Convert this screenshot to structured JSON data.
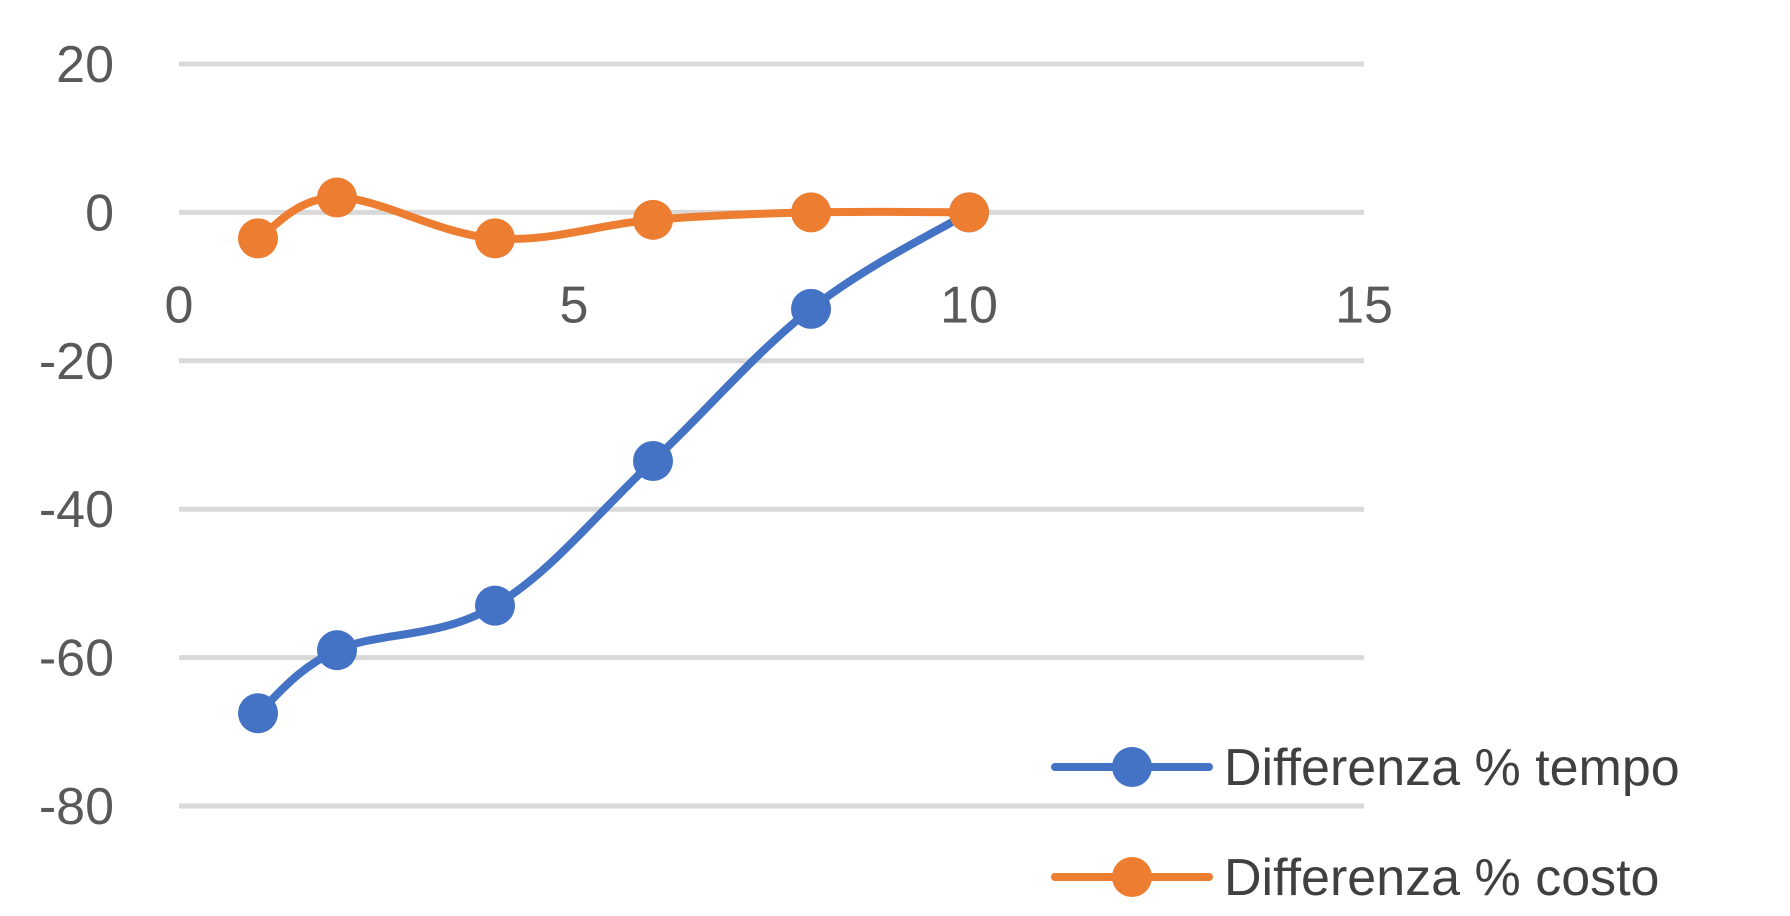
{
  "chart_data": {
    "type": "line",
    "title": "",
    "xlabel": "",
    "ylabel": "",
    "xlim": [
      0,
      15
    ],
    "ylim": [
      -80,
      20
    ],
    "x_ticks": [
      "0",
      "5",
      "10",
      "15"
    ],
    "y_ticks": [
      "20",
      "0",
      "-20",
      "-40",
      "-60",
      "-80"
    ],
    "grid": true,
    "legend_position": "bottom-right",
    "series": [
      {
        "name": "Differenza % tempo",
        "color": "#4472C4",
        "points": [
          {
            "x": 1,
            "y": -67.5
          },
          {
            "x": 2,
            "y": -59
          },
          {
            "x": 4,
            "y": -53
          },
          {
            "x": 6,
            "y": -33.5
          },
          {
            "x": 8,
            "y": -13
          },
          {
            "x": 10,
            "y": 0
          }
        ]
      },
      {
        "name": "Differenza % costo",
        "color": "#ED7D31",
        "points": [
          {
            "x": 1,
            "y": -3.5
          },
          {
            "x": 2,
            "y": 2
          },
          {
            "x": 4,
            "y": -3.5
          },
          {
            "x": 6,
            "y": -1
          },
          {
            "x": 8,
            "y": 0
          },
          {
            "x": 10,
            "y": 0
          }
        ]
      }
    ]
  }
}
